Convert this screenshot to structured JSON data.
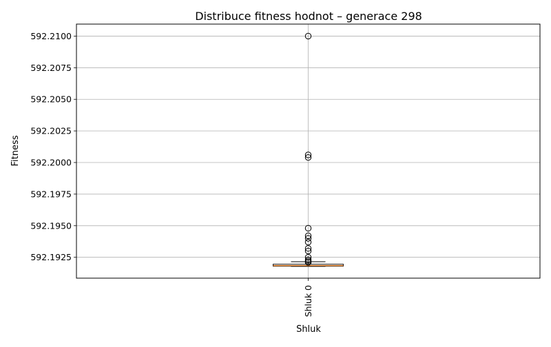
{
  "chart_data": {
    "type": "box",
    "title": "Distribuce fitness hodnot – generace 298",
    "xlabel": "Shluk",
    "ylabel": "Fitness",
    "categories": [
      "Shluk 0"
    ],
    "ylim": [
      592.19085,
      592.21095
    ],
    "y_ticks": [
      592.1925,
      592.195,
      592.1975,
      592.2,
      592.2025,
      592.205,
      592.2075,
      592.21
    ],
    "y_tick_labels": [
      "592.1925",
      "592.1950",
      "592.1975",
      "592.2000",
      "592.2025",
      "592.2050",
      "592.2075",
      "592.2100"
    ],
    "grid": true,
    "boxes": [
      {
        "category": "Shluk 0",
        "whisker_low": 592.19178,
        "q1": 592.1918,
        "median": 592.19184,
        "q3": 592.19195,
        "whisker_high": 592.19215,
        "fliers": [
          592.21,
          592.2006,
          592.2004,
          592.1948,
          592.1942,
          592.194,
          592.1937,
          592.1932,
          592.193,
          592.1925,
          592.1923,
          592.1922,
          592.1921
        ]
      }
    ],
    "colors": {
      "box": "#000000",
      "median": "#ff7f0e",
      "grid": "#b0b0b0",
      "flier_edge": "#000000"
    }
  }
}
